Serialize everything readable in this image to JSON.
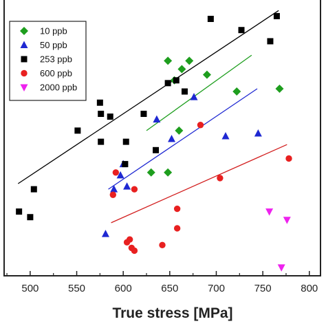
{
  "chart_data": {
    "type": "scatter",
    "xlabel": "True stress [MPa]",
    "ylabel": "",
    "title": "",
    "xlim": [
      472,
      812
    ],
    "ylim": [
      0,
      100
    ],
    "x_ticks": [
      500,
      550,
      600,
      650,
      700,
      750,
      800
    ],
    "legend_position": "top-left",
    "series": [
      {
        "name": "10 ppb",
        "marker": "diamond",
        "color": "#1e9e1e",
        "fit_color": "#1e9e1e",
        "points": [
          [
            648,
            77
          ],
          [
            655,
            70
          ],
          [
            663,
            74
          ],
          [
            671,
            77
          ],
          [
            690,
            72
          ],
          [
            722,
            66
          ],
          [
            768,
            67
          ],
          [
            660,
            52
          ],
          [
            630,
            37
          ],
          [
            648,
            37
          ]
        ],
        "fit": [
          [
            625,
            52
          ],
          [
            738,
            79
          ]
        ]
      },
      {
        "name": "50 ppb",
        "marker": "triangle",
        "color": "#1e28d2",
        "fit_color": "#1e28d2",
        "points": [
          [
            676,
            64
          ],
          [
            636,
            56
          ],
          [
            652,
            49
          ],
          [
            710,
            50
          ],
          [
            745,
            51
          ],
          [
            600,
            40
          ],
          [
            597,
            36
          ],
          [
            590,
            31
          ],
          [
            604,
            32
          ],
          [
            581,
            15
          ]
        ],
        "fit": [
          [
            584,
            31
          ],
          [
            744,
            67
          ]
        ]
      },
      {
        "name": "253 ppb",
        "marker": "square",
        "color": "#000000",
        "fit_color": "#000000",
        "points": [
          [
            765,
            93
          ],
          [
            694,
            92
          ],
          [
            727,
            88
          ],
          [
            758,
            84
          ],
          [
            648,
            69
          ],
          [
            657,
            70
          ],
          [
            666,
            66
          ],
          [
            575,
            62
          ],
          [
            576,
            58
          ],
          [
            586,
            57
          ],
          [
            622,
            58
          ],
          [
            551,
            52
          ],
          [
            576,
            48
          ],
          [
            603,
            48
          ],
          [
            635,
            45
          ],
          [
            602,
            40
          ],
          [
            488,
            23
          ],
          [
            504,
            31
          ],
          [
            500,
            21
          ]
        ],
        "fit": [
          [
            487,
            33
          ],
          [
            767,
            95
          ]
        ]
      },
      {
        "name": "600 ppb",
        "marker": "circle",
        "color": "#e82020",
        "fit_color": "#d21e1e",
        "points": [
          [
            683,
            54
          ],
          [
            778,
            42
          ],
          [
            704,
            35
          ],
          [
            592,
            37
          ],
          [
            589,
            29
          ],
          [
            612,
            31
          ],
          [
            658,
            24
          ],
          [
            658,
            17
          ],
          [
            642,
            11
          ],
          [
            604,
            12
          ],
          [
            607,
            13
          ],
          [
            609,
            10
          ],
          [
            612,
            9
          ]
        ],
        "fit": [
          [
            587,
            19
          ],
          [
            776,
            47
          ]
        ]
      },
      {
        "name": "2000 ppb",
        "marker": "triangle-down",
        "color": "#ee22ee",
        "fit_color": "",
        "points": [
          [
            757,
            23
          ],
          [
            776,
            20
          ],
          [
            770,
            3
          ]
        ],
        "fit": []
      }
    ]
  }
}
